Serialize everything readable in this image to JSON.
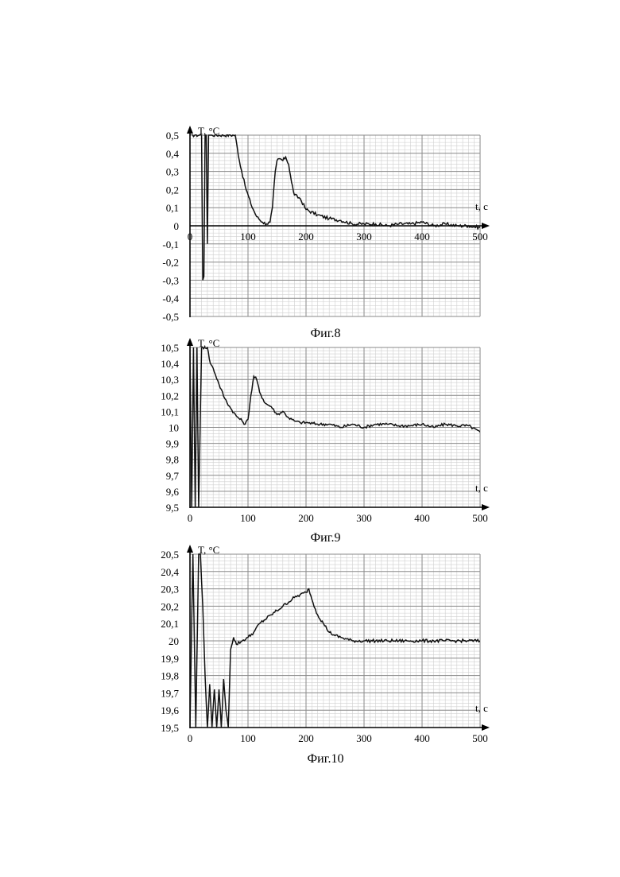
{
  "chart_data": [
    {
      "type": "line",
      "caption": "Фиг.8",
      "ylabel": "T, °C",
      "xlabel": "t, c",
      "xlim": [
        0,
        500
      ],
      "ylim": [
        -0.5,
        0.5
      ],
      "x_ticks": [
        0,
        100,
        200,
        300,
        400,
        500
      ],
      "x_tick_labels": [
        "0",
        "100",
        "200",
        "300",
        "400",
        "500"
      ],
      "y_ticks": [
        0.5,
        0.4,
        0.3,
        0.2,
        0.1,
        0,
        -0.1,
        -0.2,
        -0.3,
        -0.4,
        -0.5
      ],
      "y_tick_labels": [
        "0,5",
        "0,4",
        "0,3",
        "0,2",
        "0,1",
        "0",
        "-0,1",
        "-0,2",
        "-0,3",
        "-0,4",
        "-0,5"
      ],
      "x_axis_at": 0,
      "grid": true,
      "series": [
        {
          "x": [
            0,
            20,
            22,
            24,
            26,
            28,
            30,
            32,
            34,
            36,
            38,
            78,
            85,
            95,
            105,
            115,
            125,
            132,
            138,
            142,
            147,
            150,
            155,
            160,
            165,
            170,
            175,
            180,
            190,
            200,
            220,
            240,
            260,
            280,
            300,
            320,
            340,
            360,
            380,
            400,
            420,
            440,
            460,
            480,
            500
          ],
          "y": [
            0.5,
            0.5,
            -0.3,
            -0.28,
            0.5,
            0.5,
            -0.1,
            0.5,
            0.5,
            0.5,
            0.5,
            0.5,
            0.36,
            0.22,
            0.12,
            0.05,
            0.02,
            0.01,
            0.02,
            0.1,
            0.3,
            0.36,
            0.37,
            0.36,
            0.38,
            0.34,
            0.24,
            0.17,
            0.15,
            0.09,
            0.06,
            0.04,
            0.03,
            0.01,
            0.01,
            0.01,
            0.0,
            0.01,
            0.01,
            0.02,
            0.0,
            0.01,
            0.0,
            0.0,
            -0.01
          ]
        }
      ]
    },
    {
      "type": "line",
      "caption": "Фиг.9",
      "ylabel": "T, °C",
      "xlabel": "t, c",
      "xlim": [
        0,
        500
      ],
      "ylim": [
        9.5,
        10.5
      ],
      "x_ticks": [
        0,
        100,
        200,
        300,
        400,
        500
      ],
      "x_tick_labels": [
        "0",
        "100",
        "200",
        "300",
        "400",
        "500"
      ],
      "y_ticks": [
        10.5,
        10.4,
        10.3,
        10.2,
        10.1,
        10,
        9.9,
        9.8,
        9.7,
        9.6,
        9.5
      ],
      "y_tick_labels": [
        "10,5",
        "10,4",
        "10,3",
        "10,2",
        "10,1",
        "10",
        "9,9",
        "9,8",
        "9,7",
        "9,6",
        "9,5"
      ],
      "x_axis_at": 9.5,
      "grid": true,
      "series": [
        {
          "x": [
            0,
            3,
            6,
            9,
            12,
            15,
            20,
            25,
            30,
            35,
            40,
            50,
            60,
            70,
            80,
            90,
            95,
            100,
            105,
            110,
            115,
            120,
            130,
            140,
            150,
            160,
            170,
            180,
            190,
            200,
            220,
            240,
            260,
            280,
            300,
            320,
            340,
            360,
            380,
            400,
            420,
            440,
            460,
            480,
            500
          ],
          "y": [
            10.5,
            9.5,
            10.5,
            9.5,
            10.5,
            9.5,
            10.5,
            10.5,
            10.5,
            10.4,
            10.37,
            10.27,
            10.18,
            10.12,
            10.07,
            10.04,
            10.02,
            10.05,
            10.2,
            10.32,
            10.3,
            10.22,
            10.15,
            10.13,
            10.08,
            10.1,
            10.06,
            10.04,
            10.03,
            10.03,
            10.02,
            10.02,
            10.0,
            10.02,
            10.0,
            10.02,
            10.02,
            10.01,
            10.01,
            10.02,
            10.0,
            10.02,
            10.01,
            10.01,
            9.97
          ]
        }
      ]
    },
    {
      "type": "line",
      "caption": "Фиг.10",
      "ylabel": "T, °C",
      "xlabel": "t, c",
      "xlim": [
        0,
        500
      ],
      "ylim": [
        19.5,
        20.5
      ],
      "x_ticks": [
        0,
        100,
        200,
        300,
        400,
        500
      ],
      "x_tick_labels": [
        "0",
        "100",
        "200",
        "300",
        "400",
        "500"
      ],
      "y_ticks": [
        20.5,
        20.4,
        20.3,
        20.2,
        20.1,
        20,
        19.9,
        19.8,
        19.7,
        19.6,
        19.5
      ],
      "y_tick_labels": [
        "20,5",
        "20,4",
        "20,3",
        "20,2",
        "20,1",
        "20",
        "19,9",
        "19,8",
        "19,7",
        "19,6",
        "19,5"
      ],
      "x_axis_at": 19.5,
      "grid": true,
      "series": [
        {
          "x": [
            0,
            5,
            10,
            15,
            18,
            22,
            26,
            30,
            34,
            38,
            42,
            46,
            50,
            54,
            58,
            62,
            66,
            70,
            75,
            80,
            90,
            100,
            110,
            120,
            140,
            160,
            180,
            200,
            205,
            210,
            220,
            230,
            240,
            250,
            260,
            280,
            300,
            320,
            340,
            360,
            380,
            400,
            420,
            440,
            460,
            480,
            500
          ],
          "y": [
            19.5,
            20.5,
            19.5,
            20.5,
            20.5,
            20.2,
            19.8,
            19.5,
            19.75,
            19.5,
            19.72,
            19.5,
            19.72,
            19.5,
            19.78,
            19.6,
            19.5,
            19.95,
            20.02,
            19.98,
            20.0,
            20.02,
            20.05,
            20.1,
            20.15,
            20.2,
            20.25,
            20.28,
            20.3,
            20.24,
            20.15,
            20.1,
            20.05,
            20.03,
            20.02,
            20.0,
            20.0,
            20.0,
            20.0,
            20.0,
            20.0,
            20.0,
            20.0,
            20.0,
            20.0,
            20.0,
            20.0
          ]
        }
      ]
    }
  ]
}
